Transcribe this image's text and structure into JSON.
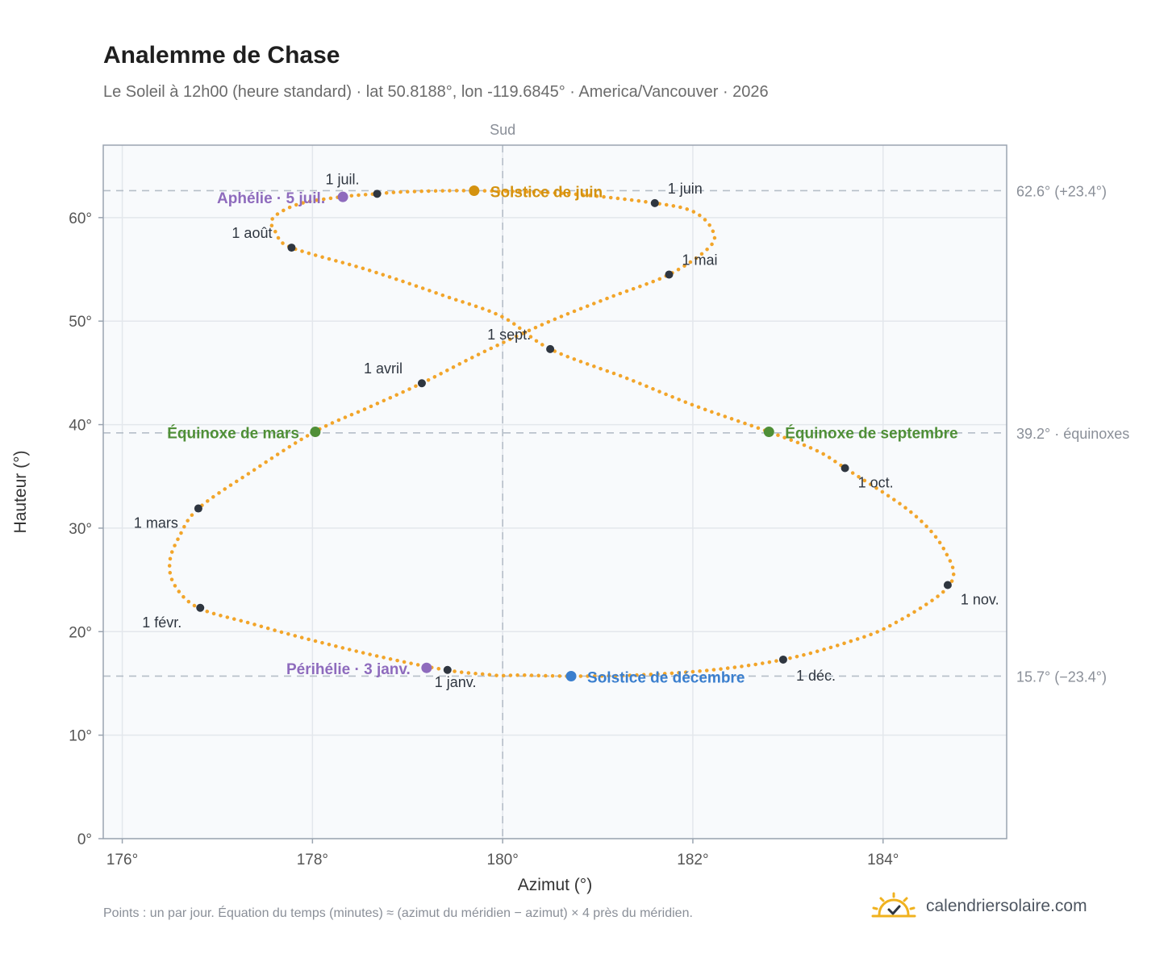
{
  "chart": {
    "title": "Analemme de Chase",
    "subtitle": "Le Soleil à 12h00 (heure standard) · lat 50.8188°, lon -119.6845° · America/Vancouver · 2026",
    "footnote": "Points : un par jour. Équation du temps (minutes) ≈ (azimut du méridien − azimut) × 4 près du méridien.",
    "brand": "calendriersolaire.com"
  },
  "chart_data": {
    "type": "scatter",
    "title": "Analemme de Chase",
    "xlabel": "Azimut (°)",
    "ylabel": "Hauteur (°)",
    "xlim": [
      175.8,
      185.3
    ],
    "ylim": [
      0,
      67
    ],
    "x_ticks": [
      176,
      178,
      180,
      182,
      184
    ],
    "y_ticks": [
      0,
      10,
      20,
      30,
      40,
      50,
      60
    ],
    "x_tick_suffix": "°",
    "y_tick_suffix": "°",
    "grid": true,
    "meridian": {
      "x": 180,
      "label": "Sud"
    },
    "reference_lines": [
      {
        "y": 62.6,
        "label": "62.6° (+23.4°)"
      },
      {
        "y": 39.2,
        "label": "39.2° · équinoxes"
      },
      {
        "y": 15.7,
        "label": "15.7° (−23.4°)"
      }
    ],
    "series": [
      {
        "anchors": [
          [
            179.4,
            16.3
          ],
          [
            178.7,
            17.6
          ],
          [
            177.9,
            19.4
          ],
          [
            177.35,
            20.8
          ],
          [
            176.8,
            22.3
          ],
          [
            176.55,
            24.5
          ],
          [
            176.5,
            26.8
          ],
          [
            176.6,
            29.2
          ],
          [
            176.8,
            31.9
          ],
          [
            177.35,
            35.4
          ],
          [
            178.02,
            39.3
          ],
          [
            178.6,
            41.7
          ],
          [
            179.15,
            44.0
          ],
          [
            179.75,
            46.8
          ],
          [
            180.45,
            49.8
          ],
          [
            181.1,
            52.2
          ],
          [
            181.75,
            54.5
          ],
          [
            182.18,
            57.2
          ],
          [
            182.2,
            58.9
          ],
          [
            182.0,
            60.6
          ],
          [
            181.6,
            61.4
          ],
          [
            180.7,
            62.3
          ],
          [
            179.7,
            62.6
          ],
          [
            179.0,
            62.5
          ],
          [
            178.68,
            62.3
          ],
          [
            178.3,
            62.0
          ],
          [
            177.85,
            61.3
          ],
          [
            177.58,
            59.9
          ],
          [
            177.62,
            58.5
          ],
          [
            177.78,
            57.1
          ],
          [
            178.6,
            54.9
          ],
          [
            179.4,
            52.4
          ],
          [
            180.0,
            50.4
          ],
          [
            180.5,
            47.3
          ],
          [
            181.3,
            44.5
          ],
          [
            182.0,
            41.9
          ],
          [
            182.8,
            39.3
          ],
          [
            183.3,
            37.5
          ],
          [
            183.6,
            35.8
          ],
          [
            184.3,
            31.5
          ],
          [
            184.65,
            27.8
          ],
          [
            184.7,
            24.5
          ],
          [
            184.1,
            20.7
          ],
          [
            183.6,
            18.9
          ],
          [
            182.95,
            17.3
          ],
          [
            182.2,
            16.3
          ],
          [
            181.4,
            15.8
          ],
          [
            180.72,
            15.7
          ],
          [
            180.2,
            15.8
          ],
          [
            179.8,
            15.9
          ],
          [
            179.4,
            16.3
          ]
        ]
      }
    ],
    "month_markers": [
      {
        "label": "1 janv.",
        "x": 179.42,
        "y": 16.3
      },
      {
        "label": "1 févr.",
        "x": 176.82,
        "y": 22.3
      },
      {
        "label": "1 mars",
        "x": 176.8,
        "y": 31.9
      },
      {
        "label": "1 avril",
        "x": 179.15,
        "y": 44.0
      },
      {
        "label": "1 mai",
        "x": 181.75,
        "y": 54.5
      },
      {
        "label": "1 juin",
        "x": 181.6,
        "y": 61.4
      },
      {
        "label": "1 juil.",
        "x": 178.68,
        "y": 62.3
      },
      {
        "label": "1 août",
        "x": 177.78,
        "y": 57.1
      },
      {
        "label": "1 sept.",
        "x": 180.5,
        "y": 47.3
      },
      {
        "label": "1 oct.",
        "x": 183.6,
        "y": 35.8
      },
      {
        "label": "1 nov.",
        "x": 184.68,
        "y": 24.5
      },
      {
        "label": "1 déc.",
        "x": 182.95,
        "y": 17.3
      }
    ],
    "events": [
      {
        "label": "Solstice de juin",
        "x": 179.7,
        "y": 62.6,
        "color": "#d4920f"
      },
      {
        "label": "Aphélie · 5 juil.",
        "x": 178.32,
        "y": 62.0,
        "color": "#8e6bbd"
      },
      {
        "label": "Équinoxe de mars",
        "x": 178.03,
        "y": 39.3,
        "color": "#4f8f37"
      },
      {
        "label": "Équinoxe de septembre",
        "x": 182.8,
        "y": 39.3,
        "color": "#4f8f37"
      },
      {
        "label": "Périhélie · 3 janv.",
        "x": 179.2,
        "y": 16.5,
        "color": "#8e6bbd"
      },
      {
        "label": "Solstice de décembre",
        "x": 180.72,
        "y": 15.7,
        "color": "#3b7fce"
      }
    ],
    "colors": {
      "curve": "#f2a52a",
      "month_marker": "#2f3640",
      "plot_background": "#f8fafc",
      "grid": "#e3e7ec",
      "reference_line": "#b5bec8"
    }
  }
}
